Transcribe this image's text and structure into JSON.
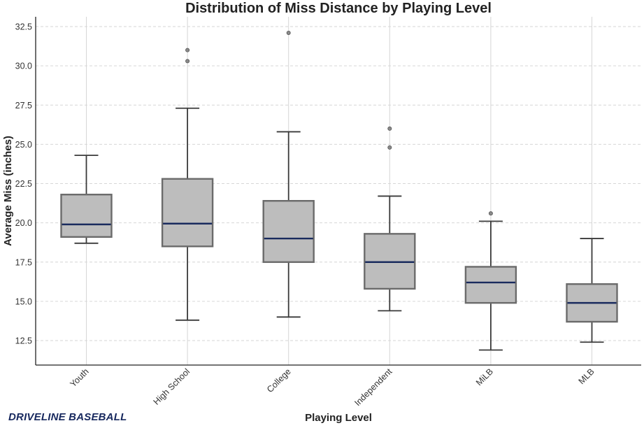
{
  "chart_data": {
    "type": "box",
    "title": "Distribution of Miss Distance by Playing Level",
    "xlabel": "Playing Level",
    "ylabel": "Average Miss (inches)",
    "ylim": [
      10.8,
      33.3
    ],
    "yticks": [
      "12.5",
      "15.0",
      "17.5",
      "20.0",
      "22.5",
      "25.0",
      "27.5",
      "30.0",
      "32.5"
    ],
    "grid": true,
    "categories": [
      "Youth",
      "High School",
      "College",
      "Independent",
      "MiLB",
      "MLB"
    ],
    "boxes": [
      {
        "category": "Youth",
        "whisker_low": 18.7,
        "q1": 19.1,
        "median": 19.9,
        "q3": 21.8,
        "whisker_high": 24.3,
        "outliers": []
      },
      {
        "category": "High School",
        "whisker_low": 13.8,
        "q1": 18.5,
        "median": 19.95,
        "q3": 22.8,
        "whisker_high": 27.3,
        "outliers": [
          30.3,
          31.0
        ]
      },
      {
        "category": "College",
        "whisker_low": 14.0,
        "q1": 17.5,
        "median": 19.0,
        "q3": 21.4,
        "whisker_high": 25.8,
        "outliers": [
          32.1
        ]
      },
      {
        "category": "Independent",
        "whisker_low": 14.4,
        "q1": 15.8,
        "median": 17.5,
        "q3": 19.3,
        "whisker_high": 21.7,
        "outliers": [
          24.8,
          26.0
        ]
      },
      {
        "category": "MiLB",
        "whisker_low": 11.9,
        "q1": 14.9,
        "median": 16.2,
        "q3": 17.2,
        "whisker_high": 20.1,
        "outliers": [
          20.6
        ]
      },
      {
        "category": "MLB",
        "whisker_low": 12.4,
        "q1": 13.7,
        "median": 14.9,
        "q3": 16.1,
        "whisker_high": 19.0,
        "outliers": []
      }
    ],
    "colors": {
      "box_fill": "#bdbdbd",
      "box_edge": "#6b6b6b",
      "median": "#1a2b5e",
      "whisker": "#3a3a3a",
      "outlier": "#8a8a8a",
      "grid": "#d6d6d6"
    }
  },
  "brand": {
    "text": "DRIVELINE BASEBALL"
  }
}
